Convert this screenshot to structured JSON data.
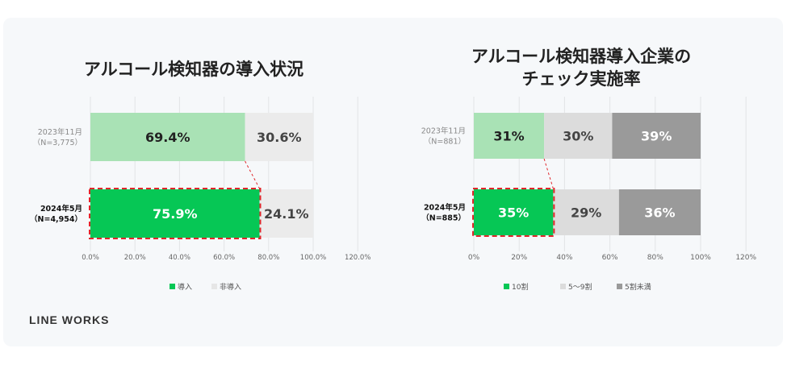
{
  "brand": "LINE WORKS",
  "chart_data": [
    {
      "type": "bar",
      "orientation": "horizontal",
      "stacked": true,
      "title": "アルコール検知器の導入状況",
      "categories": [
        {
          "line1": "2023年11月",
          "line2": "（N=3,775）",
          "bold": false
        },
        {
          "line1": "2024年5月",
          "line2": "（N=4,954）",
          "bold": true
        }
      ],
      "series": [
        {
          "name": "導入",
          "values": [
            69.4,
            75.9
          ],
          "labels": [
            "69.4%",
            "75.9%"
          ],
          "colors": [
            "#a9e2b5",
            "#06c755"
          ],
          "label_colors": [
            "#222222",
            "#ffffff"
          ]
        },
        {
          "name": "非導入",
          "values": [
            30.6,
            24.1
          ],
          "labels": [
            "30.6%",
            "24.1%"
          ],
          "colors": [
            "#ebebeb",
            "#ebebeb"
          ],
          "label_colors": [
            "#444444",
            "#444444"
          ]
        }
      ],
      "xlim": [
        0,
        120
      ],
      "ticks": [
        0,
        20,
        40,
        60,
        80,
        100,
        120
      ],
      "tick_labels": [
        "0.0%",
        "20.0%",
        "40.0%",
        "60.0%",
        "80.0%",
        "100.0%",
        "120.0%"
      ],
      "legend": [
        {
          "name": "導入",
          "color": "#06c755"
        },
        {
          "name": "非導入",
          "color": "#e6e6e6"
        }
      ],
      "legend_position": "bottom",
      "grid": true,
      "highlight": "2024年5月 導入 (red dashed outline)"
    },
    {
      "type": "bar",
      "orientation": "horizontal",
      "stacked": true,
      "title": [
        "アルコール検知器導入企業の",
        "チェック実施率"
      ],
      "categories": [
        {
          "line1": "2023年11月",
          "line2": "（N=881）",
          "bold": false
        },
        {
          "line1": "2024年5月",
          "line2": "（N=885）",
          "bold": true
        }
      ],
      "series": [
        {
          "name": "10割",
          "values": [
            31,
            35
          ],
          "labels": [
            "31%",
            "35%"
          ],
          "colors": [
            "#a9e2b5",
            "#06c755"
          ],
          "label_colors": [
            "#222222",
            "#ffffff"
          ]
        },
        {
          "name": "5～9割",
          "values": [
            30,
            29
          ],
          "labels": [
            "30%",
            "29%"
          ],
          "colors": [
            "#dcdcdc",
            "#dcdcdc"
          ],
          "label_colors": [
            "#444444",
            "#444444"
          ]
        },
        {
          "name": "5割未満",
          "values": [
            39,
            36
          ],
          "labels": [
            "39%",
            "36%"
          ],
          "colors": [
            "#9a9a9a",
            "#9a9a9a"
          ],
          "label_colors": [
            "#ffffff",
            "#ffffff"
          ]
        }
      ],
      "xlim": [
        0,
        120
      ],
      "ticks": [
        0,
        20,
        40,
        60,
        80,
        100,
        120
      ],
      "tick_labels": [
        "0%",
        "20%",
        "40%",
        "60%",
        "80%",
        "100%",
        "120%"
      ],
      "legend": [
        {
          "name": "10割",
          "color": "#06c755"
        },
        {
          "name": "5～9割",
          "color": "#dcdcdc"
        },
        {
          "name": "5割未満",
          "color": "#9a9a9a"
        }
      ],
      "legend_position": "bottom",
      "grid": true,
      "highlight": "2024年5月 10割 (red dashed outline)"
    }
  ]
}
